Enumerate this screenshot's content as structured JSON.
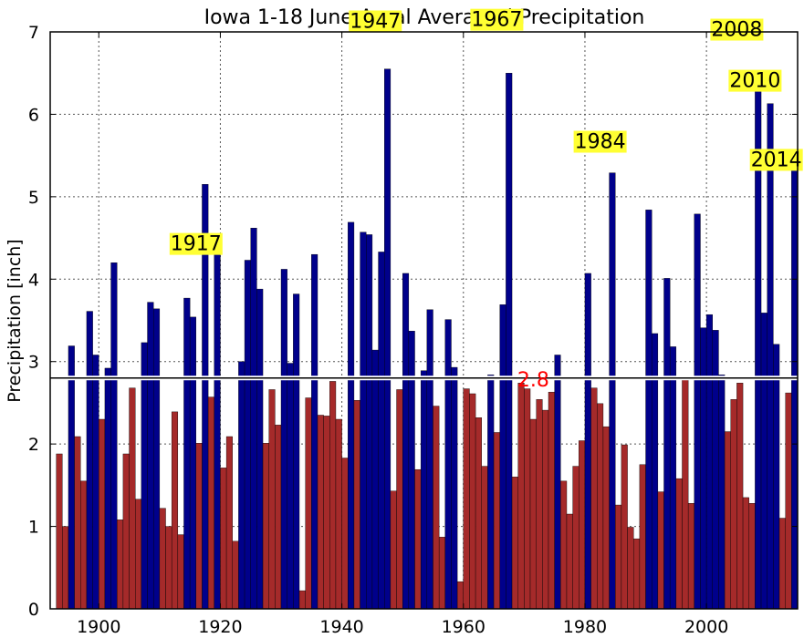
{
  "chart_data": {
    "type": "bar",
    "title": "Iowa 1-18 June Areal Averaged Precipitation",
    "ylabel": "Precipitation [inch]",
    "xlabel": "",
    "xlim": [
      1892,
      2015
    ],
    "ylim": [
      0,
      7
    ],
    "xticks": [
      "1900",
      "1920",
      "1940",
      "1960",
      "1980",
      "2000"
    ],
    "yticks": [
      "0",
      "1",
      "2",
      "3",
      "4",
      "5",
      "6",
      "7"
    ],
    "grid": true,
    "threshold": {
      "value": 2.8,
      "label": "2.8",
      "label_color": "#ff0000",
      "line_color": "#000000"
    },
    "colors": {
      "above": "#00008b",
      "below": "#a52a2a",
      "label_bg": "#ffff33"
    },
    "annotations": [
      {
        "text": "1917",
        "x": 1917,
        "y": 5.15
      },
      {
        "text": "1947",
        "x": 1947,
        "y": 6.55
      },
      {
        "text": "1967",
        "x": 1967,
        "y": 6.5
      },
      {
        "text": "1984",
        "x": 1984,
        "y": 5.29
      },
      {
        "text": "2008",
        "x": 2008,
        "y": 6.4
      },
      {
        "text": "2010",
        "x": 2010,
        "y": 6.13
      },
      {
        "text": "2014",
        "x": 2014,
        "y": 5.57
      }
    ],
    "years": [
      1893,
      1894,
      1895,
      1896,
      1897,
      1898,
      1899,
      1900,
      1901,
      1902,
      1903,
      1904,
      1905,
      1906,
      1907,
      1908,
      1909,
      1910,
      1911,
      1912,
      1913,
      1914,
      1915,
      1916,
      1917,
      1918,
      1919,
      1920,
      1921,
      1922,
      1923,
      1924,
      1925,
      1926,
      1927,
      1928,
      1929,
      1930,
      1931,
      1932,
      1933,
      1934,
      1935,
      1936,
      1937,
      1938,
      1939,
      1940,
      1941,
      1942,
      1943,
      1944,
      1945,
      1946,
      1947,
      1948,
      1949,
      1950,
      1951,
      1952,
      1953,
      1954,
      1955,
      1956,
      1957,
      1958,
      1959,
      1960,
      1961,
      1962,
      1963,
      1964,
      1965,
      1966,
      1967,
      1968,
      1969,
      1970,
      1971,
      1972,
      1973,
      1974,
      1975,
      1976,
      1977,
      1978,
      1979,
      1980,
      1981,
      1982,
      1983,
      1984,
      1985,
      1986,
      1987,
      1988,
      1989,
      1990,
      1991,
      1992,
      1993,
      1994,
      1995,
      1996,
      1997,
      1998,
      1999,
      2000,
      2001,
      2002,
      2003,
      2004,
      2005,
      2006,
      2007,
      2008,
      2009,
      2010,
      2011,
      2012,
      2013,
      2014
    ],
    "values": [
      1.88,
      1.0,
      3.19,
      2.09,
      1.55,
      3.61,
      3.08,
      2.3,
      2.92,
      4.2,
      1.08,
      1.88,
      2.68,
      1.33,
      3.23,
      3.72,
      3.64,
      1.22,
      1.0,
      2.39,
      0.9,
      3.77,
      3.54,
      2.01,
      5.15,
      2.57,
      4.33,
      1.71,
      2.09,
      0.82,
      3.0,
      4.23,
      4.62,
      3.88,
      2.01,
      2.66,
      2.23,
      4.12,
      2.98,
      3.82,
      0.22,
      2.56,
      4.3,
      2.35,
      2.34,
      2.76,
      2.3,
      1.83,
      4.69,
      2.53,
      4.57,
      4.54,
      3.14,
      4.33,
      6.55,
      1.43,
      2.66,
      4.07,
      3.37,
      1.69,
      2.89,
      3.63,
      2.46,
      0.87,
      3.51,
      2.93,
      0.33,
      2.67,
      2.61,
      2.32,
      1.73,
      2.84,
      2.14,
      3.69,
      6.5,
      1.6,
      2.74,
      2.67,
      2.3,
      2.54,
      2.41,
      2.63,
      3.08,
      1.55,
      1.15,
      1.73,
      2.04,
      4.07,
      2.68,
      2.49,
      2.21,
      5.29,
      1.26,
      1.99,
      0.99,
      0.85,
      1.75,
      4.84,
      3.34,
      1.42,
      4.01,
      3.18,
      1.58,
      2.8,
      1.28,
      4.79,
      3.41,
      3.57,
      3.38,
      2.84,
      2.15,
      2.54,
      2.74,
      1.35,
      1.28,
      6.4,
      3.59,
      6.13,
      3.21,
      1.1,
      2.62,
      5.57
    ]
  }
}
